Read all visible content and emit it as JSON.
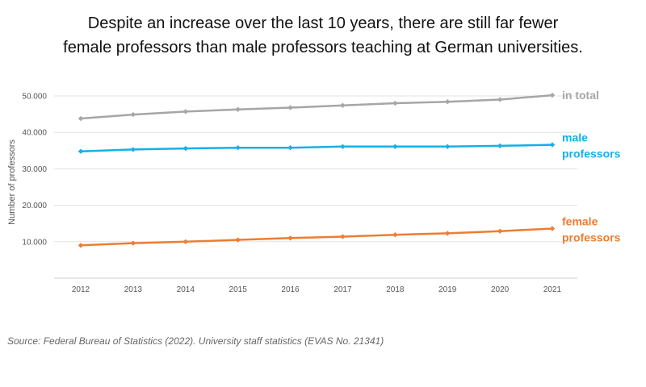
{
  "title_line1": "Despite an increase over the last 10 years, there are still far fewer",
  "title_line2": "female professors than male professors teaching at German universities.",
  "source": "Source: Federal Bureau of Statistics (2022). University staff statistics (EVAS No. 21341)",
  "chart_data": {
    "type": "line",
    "title": "Despite an increase over the last 10 years, there are still far fewer female professors than male professors teaching at German universities.",
    "xlabel": "",
    "ylabel": "Number of professors",
    "x": [
      2012,
      2013,
      2014,
      2015,
      2016,
      2017,
      2018,
      2019,
      2020,
      2021
    ],
    "ylim": [
      0,
      55000
    ],
    "yticks": [
      10000,
      20000,
      30000,
      40000,
      50000
    ],
    "ytick_labels": [
      "10.000",
      "20.000",
      "30.000",
      "40.000",
      "50.000"
    ],
    "grid": true,
    "legend": "labels at line ends (right)",
    "series": [
      {
        "name": "in total",
        "label_lines": [
          "in total"
        ],
        "color": "#a6a6a6",
        "values": [
          43800,
          44900,
          45700,
          46300,
          46800,
          47400,
          48000,
          48400,
          49000,
          50200
        ]
      },
      {
        "name": "male professors",
        "label_lines": [
          "male",
          "professors"
        ],
        "color": "#15b0e8",
        "values": [
          34800,
          35300,
          35600,
          35800,
          35800,
          36100,
          36100,
          36100,
          36300,
          36600
        ]
      },
      {
        "name": "female professors",
        "label_lines": [
          "female",
          "professors"
        ],
        "color": "#ed7d31",
        "values": [
          9000,
          9600,
          10000,
          10500,
          11000,
          11400,
          11900,
          12300,
          12900,
          13600
        ]
      }
    ]
  }
}
